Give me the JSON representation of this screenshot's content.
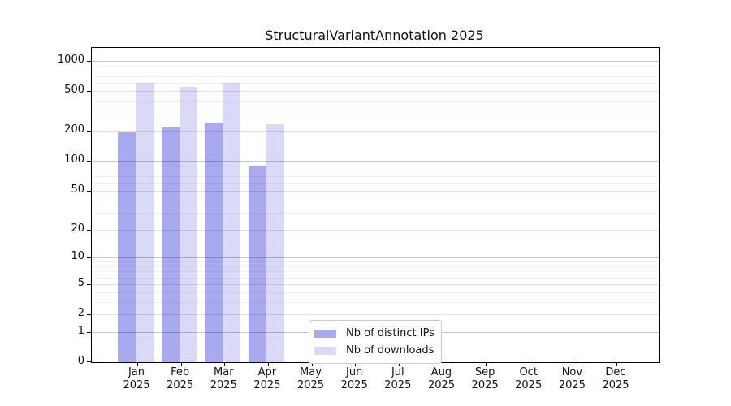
{
  "chart_data": {
    "type": "bar",
    "title": "StructuralVariantAnnotation 2025",
    "categories": [
      "Jan",
      "Feb",
      "Mar",
      "Apr",
      "May",
      "Jun",
      "Jul",
      "Aug",
      "Sep",
      "Oct",
      "Nov",
      "Dec"
    ],
    "year_label": "2025",
    "series": [
      {
        "name": "Nb of distinct IPs",
        "color": "#a9a9f0",
        "values": [
          195,
          218,
          240,
          89,
          null,
          null,
          null,
          null,
          null,
          null,
          null,
          null
        ]
      },
      {
        "name": "Nb of downloads",
        "color": "#dadaf8",
        "values": [
          610,
          550,
          600,
          235,
          null,
          null,
          null,
          null,
          null,
          null,
          null,
          null
        ]
      }
    ],
    "yscale": "log1p",
    "yticks": [
      0,
      1,
      2,
      5,
      10,
      20,
      50,
      100,
      200,
      500,
      1000
    ],
    "minor_yticks": [
      3,
      4,
      6,
      7,
      8,
      9,
      30,
      40,
      60,
      70,
      80,
      90,
      300,
      400,
      600,
      700,
      800,
      900
    ],
    "decade_yticks": [
      1,
      10,
      100,
      1000
    ],
    "ylim": [
      0,
      1350
    ],
    "xlabel": "",
    "ylabel": "",
    "grid": "horizontal",
    "legend_position": "lower center"
  }
}
